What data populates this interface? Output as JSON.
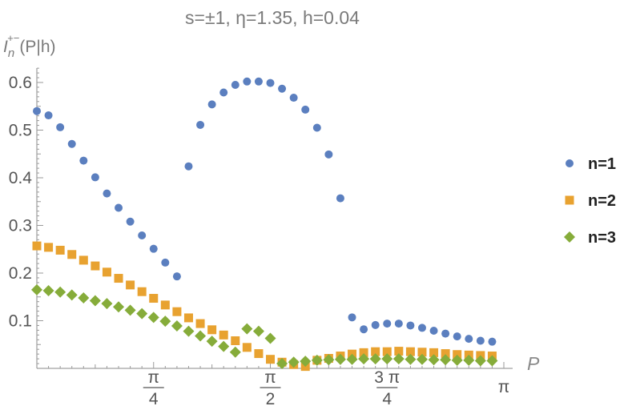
{
  "chart_data": {
    "type": "scatter",
    "title": "s=±1, η=1.35, h=0.04",
    "ylabel": "I_n^{+-}(P|h)",
    "xlabel": "P",
    "xlim": [
      0,
      3.14159
    ],
    "ylim": [
      0,
      0.63
    ],
    "x_ticks": [
      {
        "value": 0.785398,
        "num": "π",
        "den": "4"
      },
      {
        "value": 1.570796,
        "num": "π",
        "den": "2"
      },
      {
        "value": 2.356194,
        "num": "3 π",
        "den": "4"
      },
      {
        "value": 3.141593,
        "num": "π",
        "den": ""
      }
    ],
    "y_ticks": [
      0.1,
      0.2,
      0.3,
      0.4,
      0.5,
      0.6
    ],
    "y_tick_labels": [
      "0.1",
      "0.2",
      "0.3",
      "0.4",
      "0.5",
      "0.6"
    ],
    "legend_position": "right",
    "grid": false,
    "series": [
      {
        "name": "n=1",
        "color": "#5b7fbf",
        "marker": "circle",
        "x": [
          0.0,
          0.0785,
          0.1571,
          0.2356,
          0.3142,
          0.3927,
          0.4712,
          0.5498,
          0.6283,
          0.7069,
          0.7854,
          0.8639,
          0.9425,
          1.021,
          1.0996,
          1.1781,
          1.2566,
          1.3352,
          1.4137,
          1.4923,
          1.5708,
          1.6493,
          1.7279,
          1.8064,
          1.885,
          1.9635,
          2.042,
          2.1206,
          2.1991,
          2.2777,
          2.3562,
          2.4347,
          2.5133,
          2.5918,
          2.6704,
          2.7489,
          2.8274,
          2.906,
          2.9845,
          3.0631
        ],
        "y": [
          0.54,
          0.531,
          0.506,
          0.471,
          0.436,
          0.401,
          0.367,
          0.337,
          0.308,
          0.279,
          0.251,
          0.222,
          0.193,
          0.424,
          0.511,
          0.554,
          0.579,
          0.595,
          0.602,
          0.602,
          0.599,
          0.587,
          0.568,
          0.543,
          0.505,
          0.449,
          0.357,
          0.107,
          0.082,
          0.091,
          0.094,
          0.094,
          0.09,
          0.085,
          0.079,
          0.073,
          0.067,
          0.062,
          0.058,
          0.056
        ]
      },
      {
        "name": "n=2",
        "color": "#e8a230",
        "marker": "square",
        "x": [
          0.0,
          0.0785,
          0.1571,
          0.2356,
          0.3142,
          0.3927,
          0.4712,
          0.5498,
          0.6283,
          0.7069,
          0.7854,
          0.8639,
          0.9425,
          1.021,
          1.0996,
          1.1781,
          1.2566,
          1.3352,
          1.4137,
          1.4923,
          1.5708,
          1.6493,
          1.7279,
          1.8064,
          1.885,
          1.9635,
          2.042,
          2.1206,
          2.1991,
          2.2777,
          2.3562,
          2.4347,
          2.5133,
          2.5918,
          2.6704,
          2.7489,
          2.8274,
          2.906,
          2.9845,
          3.0631
        ],
        "y": [
          0.257,
          0.254,
          0.248,
          0.239,
          0.227,
          0.215,
          0.202,
          0.189,
          0.175,
          0.161,
          0.147,
          0.133,
          0.119,
          0.106,
          0.094,
          0.081,
          0.07,
          0.058,
          0.044,
          0.031,
          0.019,
          0.013,
          0.008,
          0.004,
          0.017,
          0.021,
          0.026,
          0.03,
          0.033,
          0.035,
          0.035,
          0.036,
          0.035,
          0.034,
          0.033,
          0.031,
          0.029,
          0.028,
          0.027,
          0.026
        ]
      },
      {
        "name": "n=3",
        "color": "#86ac3a",
        "marker": "diamond",
        "x": [
          0.0,
          0.0785,
          0.1571,
          0.2356,
          0.3142,
          0.3927,
          0.4712,
          0.5498,
          0.6283,
          0.7069,
          0.7854,
          0.8639,
          0.9425,
          1.021,
          1.0996,
          1.1781,
          1.2566,
          1.3352,
          1.4137,
          1.4923,
          1.5708,
          1.6493,
          1.7279,
          1.8064,
          1.885,
          1.9635,
          2.042,
          2.1206,
          2.1991,
          2.2777,
          2.3562,
          2.4347,
          2.5133,
          2.5918,
          2.6704,
          2.7489,
          2.8274,
          2.906,
          2.9845,
          3.0631
        ],
        "y": [
          0.165,
          0.163,
          0.16,
          0.154,
          0.148,
          0.142,
          0.136,
          0.129,
          0.122,
          0.115,
          0.107,
          0.099,
          0.089,
          0.078,
          0.068,
          0.057,
          0.046,
          0.034,
          0.083,
          0.078,
          0.063,
          0.01,
          0.013,
          0.015,
          0.017,
          0.018,
          0.019,
          0.019,
          0.02,
          0.02,
          0.02,
          0.02,
          0.019,
          0.019,
          0.018,
          0.018,
          0.017,
          0.017,
          0.016,
          0.016
        ]
      }
    ]
  }
}
